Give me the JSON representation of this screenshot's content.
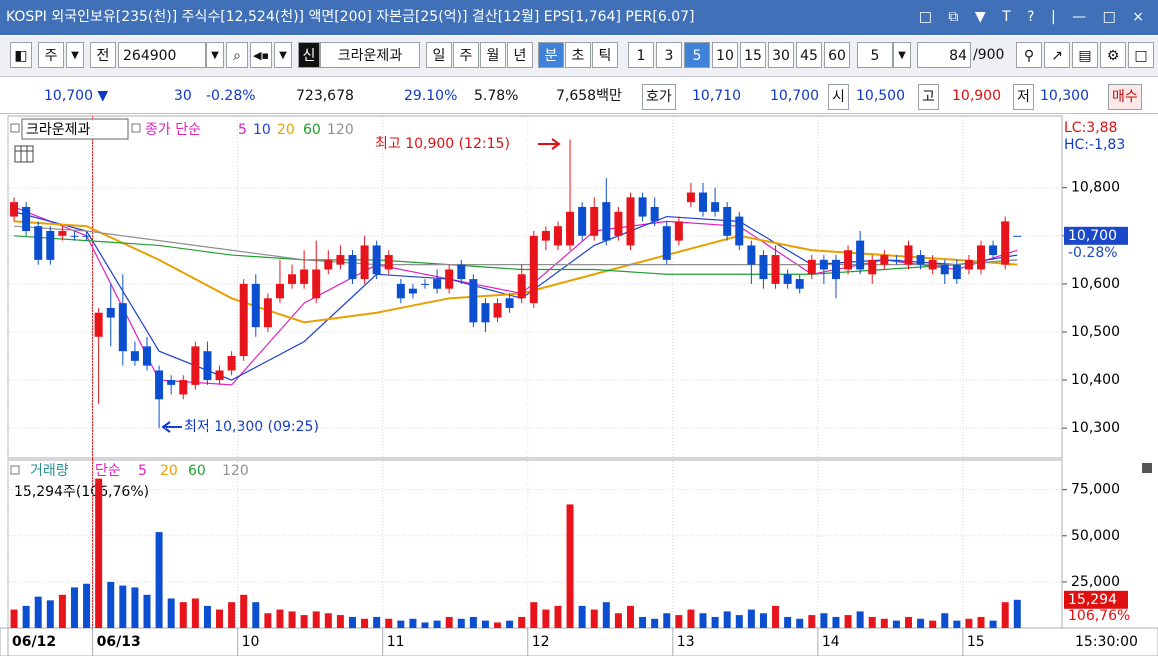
{
  "title_bar": "KOSPI 외국인보유[235(천)] 주식수[12,524(천)] 액면[200] 자본금[25(억)] 결산[12월] EPS[1,764] PER[6.07]",
  "toolbar": {
    "market": "주",
    "type": "전",
    "code": "264900",
    "name_tag": "신",
    "name": "크라운제과",
    "periods": [
      "일",
      "주",
      "월",
      "년",
      "분",
      "초",
      "틱"
    ],
    "intervals": [
      "1",
      "3",
      "5",
      "10",
      "15",
      "30",
      "45",
      "60"
    ],
    "count_select": "5",
    "count": "84",
    "count_max": "/900"
  },
  "quote": {
    "price": "10,700 ▼",
    "change": "30",
    "change_pct": "-0.28%",
    "volume": "723,678",
    "rate1": "29.10%",
    "rate2": "5.78%",
    "amount": "7,658백만",
    "hoga_label": "호가",
    "ask": "10,710",
    "bid": "10,700",
    "open_label": "시",
    "open": "10,500",
    "high_label": "고",
    "high": "10,900",
    "low_label": "저",
    "low": "10,300",
    "buy": "매수"
  },
  "chart_data": [
    {
      "type": "candlestick",
      "name": "크라운제과",
      "ma_label": "종가 단순",
      "up_color": "#e8141c",
      "down_color": "#0b4fd0",
      "open": [
        10740,
        10760,
        10720,
        10710,
        10700,
        10700,
        10700,
        10490,
        10550,
        10560,
        10460,
        10470,
        10420,
        10400,
        10370,
        10390,
        10460,
        10400,
        10420,
        10450,
        10600,
        10510,
        10570,
        10600,
        10600,
        10570,
        10630,
        10640,
        10660,
        10610,
        10680,
        10630,
        10600,
        10590,
        10600,
        10610,
        10590,
        10640,
        10610,
        10560,
        10530,
        10570,
        10570,
        10560,
        10690,
        10680,
        10680,
        10760,
        10700,
        10770,
        10700,
        10680,
        10780,
        10760,
        10720,
        10690,
        10770,
        10790,
        10770,
        10760,
        10740,
        10680,
        10660,
        10600,
        10620,
        10610,
        10620,
        10650,
        10650,
        10630,
        10690,
        10620,
        10640,
        10650,
        10640,
        10660,
        10630,
        10640,
        10640,
        10630,
        10630,
        10680,
        10640,
        10700
      ],
      "high": [
        10780,
        10770,
        10730,
        10720,
        10720,
        10710,
        10710,
        10550,
        10600,
        10620,
        10480,
        10490,
        10430,
        10410,
        10410,
        10480,
        10480,
        10430,
        10460,
        10610,
        10620,
        10580,
        10650,
        10640,
        10670,
        10690,
        10670,
        10680,
        10670,
        10700,
        10690,
        10670,
        10610,
        10600,
        10610,
        10630,
        10640,
        10650,
        10620,
        10570,
        10570,
        10580,
        10640,
        10710,
        10720,
        10730,
        10900,
        10770,
        10780,
        10820,
        10760,
        10790,
        10790,
        10780,
        10730,
        10740,
        10810,
        10810,
        10800,
        10770,
        10750,
        10690,
        10670,
        10680,
        10630,
        10620,
        10660,
        10660,
        10660,
        10680,
        10710,
        10660,
        10670,
        10660,
        10690,
        10670,
        10660,
        10650,
        10650,
        10660,
        10690,
        10690,
        10740,
        10700
      ],
      "low": [
        10730,
        10700,
        10640,
        10640,
        10690,
        10690,
        10690,
        10350,
        10470,
        10430,
        10430,
        10420,
        10300,
        10370,
        10360,
        10380,
        10390,
        10390,
        10410,
        10440,
        10490,
        10500,
        10560,
        10590,
        10590,
        10560,
        10620,
        10630,
        10600,
        10600,
        10610,
        10620,
        10560,
        10570,
        10590,
        10580,
        10580,
        10600,
        10510,
        10500,
        10520,
        10540,
        10560,
        10550,
        10670,
        10670,
        10670,
        10690,
        10690,
        10680,
        10690,
        10670,
        10730,
        10720,
        10640,
        10680,
        10760,
        10740,
        10740,
        10690,
        10670,
        10600,
        10590,
        10590,
        10590,
        10580,
        10610,
        10600,
        10570,
        10620,
        10620,
        10600,
        10630,
        10640,
        10630,
        10630,
        10620,
        10600,
        10600,
        10620,
        10620,
        10650,
        10630,
        10700
      ],
      "close": [
        10770,
        10710,
        10650,
        10650,
        10710,
        10700,
        10700,
        10540,
        10530,
        10460,
        10440,
        10430,
        10360,
        10390,
        10400,
        10470,
        10400,
        10420,
        10450,
        10600,
        10510,
        10570,
        10600,
        10620,
        10630,
        10630,
        10650,
        10660,
        10610,
        10680,
        10620,
        10660,
        10570,
        10580,
        10600,
        10590,
        10630,
        10610,
        10520,
        10520,
        10560,
        10550,
        10620,
        10700,
        10710,
        10720,
        10750,
        10700,
        10760,
        10690,
        10750,
        10780,
        10740,
        10730,
        10650,
        10730,
        10790,
        10750,
        10750,
        10700,
        10680,
        10640,
        10610,
        10660,
        10600,
        10590,
        10650,
        10630,
        10610,
        10670,
        10630,
        10650,
        10660,
        10650,
        10680,
        10640,
        10650,
        10620,
        10610,
        10650,
        10680,
        10660,
        10730,
        10700
      ],
      "ma_x": [
        0,
        6,
        12,
        18,
        24,
        30,
        36,
        42,
        48,
        54,
        60,
        66,
        72,
        78,
        83
      ],
      "series": [
        {
          "name": "5",
          "color": "#e020c0",
          "values": [
            10760,
            10700,
            10400,
            10390,
            10560,
            10640,
            10610,
            10580,
            10710,
            10730,
            10720,
            10620,
            10650,
            10630,
            10670
          ]
        },
        {
          "name": "10",
          "color": "#2040d0",
          "values": [
            10750,
            10710,
            10460,
            10400,
            10480,
            10620,
            10610,
            10570,
            10680,
            10740,
            10730,
            10640,
            10650,
            10640,
            10660
          ]
        },
        {
          "name": "20",
          "color": "#e8a000",
          "values": [
            10730,
            10720,
            10650,
            10570,
            10520,
            10540,
            10570,
            10580,
            10620,
            10660,
            10700,
            10670,
            10660,
            10650,
            10640
          ]
        },
        {
          "name": "60",
          "color": "#20a030",
          "values": [
            10700,
            10690,
            10680,
            10660,
            10650,
            10650,
            10640,
            10630,
            10630,
            10620,
            10620,
            10620,
            10630,
            10640,
            10650
          ]
        },
        {
          "name": "120",
          "color": "#909090",
          "values": [
            10720,
            10710,
            10690,
            10670,
            10650,
            10640,
            10640,
            10640,
            10640,
            10640,
            10640,
            10640,
            10640,
            10640,
            10650
          ]
        }
      ],
      "ylim": [
        10240,
        10945
      ],
      "yticks": [
        {
          "value": 10300,
          "label": "10,300"
        },
        {
          "value": 10400,
          "label": "10,400"
        },
        {
          "value": 10500,
          "label": "10,500"
        },
        {
          "value": 10600,
          "label": "10,600"
        },
        {
          "value": 10700,
          "label": "10,700"
        },
        {
          "value": 10800,
          "label": "10,800"
        }
      ],
      "grid": true,
      "annotations": {
        "high": "최고 10,900 (12:15)",
        "low": "최저 10,300 (09:25)"
      },
      "lc": "LC:3,88",
      "hc": "HC:-1,83",
      "last": {
        "value": 10700,
        "label": "10,700"
      },
      "last_change": "-0.28%"
    },
    {
      "type": "bar",
      "name": "거래량",
      "ma_label": "단순",
      "ma_legend": [
        {
          "label": "5",
          "color": "#e020c0"
        },
        {
          "label": "20",
          "color": "#e8a000"
        },
        {
          "label": "60",
          "color": "#20a030"
        },
        {
          "label": "120",
          "color": "#909090"
        }
      ],
      "info": "15,294주(106,76%)",
      "values": [
        10000,
        12000,
        17000,
        15000,
        18000,
        22000,
        24000,
        81000,
        25000,
        23000,
        22000,
        18000,
        52000,
        16000,
        14000,
        16000,
        12000,
        10000,
        14000,
        18000,
        14000,
        8000,
        10000,
        9000,
        7000,
        9000,
        8000,
        7000,
        6000,
        5000,
        6000,
        5000,
        4000,
        5000,
        3000,
        4000,
        6000,
        5000,
        6000,
        4000,
        3000,
        4000,
        6000,
        14000,
        10000,
        12000,
        67000,
        12000,
        10000,
        14000,
        8000,
        12000,
        6000,
        5000,
        8000,
        7000,
        10000,
        8000,
        6000,
        9000,
        7000,
        10000,
        8000,
        12000,
        6000,
        5000,
        7000,
        8000,
        6000,
        7000,
        9000,
        6000,
        5000,
        4000,
        6000,
        5000,
        4000,
        8000,
        4000,
        5000,
        6000,
        4000,
        14000,
        15294
      ],
      "ylim": [
        0,
        90000
      ],
      "yticks": [
        {
          "value": 25000,
          "label": "25,000"
        },
        {
          "value": 50000,
          "label": "50,000"
        },
        {
          "value": 75000,
          "label": "75,000"
        }
      ],
      "grid": true,
      "xlim": [
        -0.5,
        86.7
      ],
      "xticks": [
        {
          "value": 0,
          "label": "06/12"
        },
        {
          "value": 7,
          "label": "06/13"
        },
        {
          "value": 19,
          "label": "10"
        },
        {
          "value": 31,
          "label": "11"
        },
        {
          "value": 43,
          "label": "12"
        },
        {
          "value": 55,
          "label": "13"
        },
        {
          "value": 67,
          "label": "14"
        },
        {
          "value": 79,
          "label": "15"
        }
      ],
      "end_label": "15:30:00",
      "last": {
        "value": 15294,
        "label": "15,294"
      },
      "last_ratio": "106,76%"
    }
  ]
}
